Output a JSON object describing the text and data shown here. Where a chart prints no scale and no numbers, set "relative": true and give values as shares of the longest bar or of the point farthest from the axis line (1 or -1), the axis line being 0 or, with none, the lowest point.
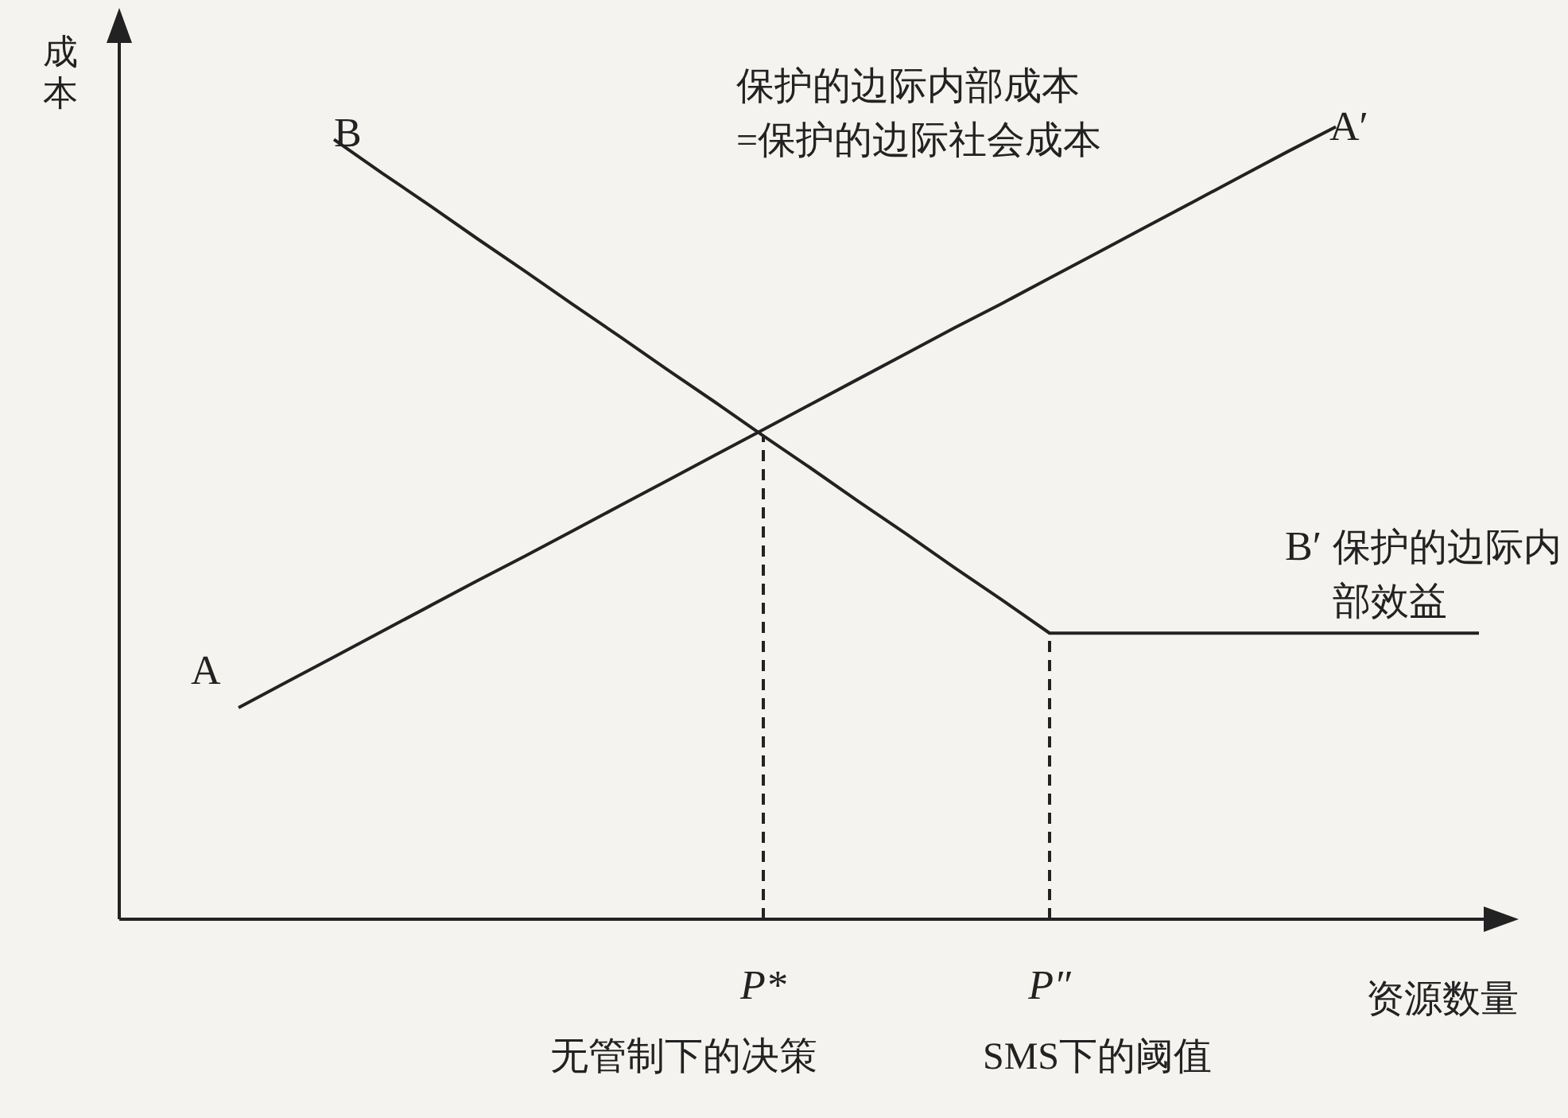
{
  "chart_data": {
    "type": "line",
    "relative": true,
    "xlabel": "资源数量",
    "ylabel": "成本",
    "tick_labels": "x",
    "grid": false,
    "marker": "none",
    "categories": [
      null,
      null,
      null,
      null,
      null,
      null,
      null,
      null,
      null,
      null,
      null,
      null,
      null,
      "P*",
      null,
      null,
      null,
      null,
      null,
      "P″",
      null,
      null,
      null,
      null,
      null,
      null,
      null,
      null,
      null
    ],
    "series": [
      {
        "color": "#222222",
        "values": [
          null,
          null,
          0.267,
          0.299,
          0.331,
          0.363,
          0.395,
          0.427,
          0.458,
          0.49,
          0.522,
          0.554,
          0.586,
          0.618,
          0.65,
          0.682,
          0.714,
          0.746,
          0.777,
          0.809,
          0.841,
          0.873,
          0.905,
          0.937,
          0.969,
          1.0,
          null,
          null,
          null
        ]
      },
      {
        "color": "#222222",
        "values": [
          null,
          null,
          null,
          null,
          0.984,
          0.942,
          0.901,
          0.859,
          0.818,
          0.776,
          0.735,
          0.693,
          0.652,
          0.61,
          0.569,
          0.527,
          0.486,
          0.444,
          0.403,
          0.361,
          0.361,
          0.361,
          0.361,
          0.361,
          0.361,
          0.361,
          0.361,
          0.361,
          0.361
        ]
      }
    ],
    "ref_lines": [
      {
        "axis": "x",
        "value": "P*",
        "line_style": "dashed",
        "color": "#222222"
      },
      {
        "axis": "x",
        "value": "P″",
        "line_style": "dashed",
        "color": "#222222"
      }
    ],
    "annotations": [
      "A",
      "A′",
      "B",
      "B′",
      "保护的边际内部成本\n=保护的边际社会成本",
      "保护的边际内部效益",
      "无管制下的决策",
      "SMS下的阈值"
    ]
  }
}
